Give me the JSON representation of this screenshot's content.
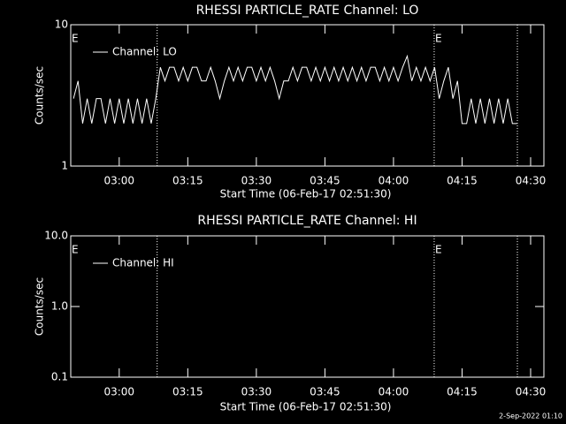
{
  "chart_data": [
    {
      "type": "line",
      "title": "RHESSI PARTICLE_RATE Channel: LO",
      "xlabel": "Start Time (06-Feb-17 02:51:30)",
      "ylabel": "Counts/sec",
      "log_y": true,
      "legend": "upper left",
      "line_color": "#ffffff",
      "xlim": [
        169.4,
        272.9
      ],
      "ylim": [
        1,
        10
      ],
      "yticks": [
        1,
        10
      ],
      "xticks": [
        {
          "value": 180,
          "label": "03:00"
        },
        {
          "value": 195,
          "label": "03:15"
        },
        {
          "value": 210,
          "label": "03:30"
        },
        {
          "value": 225,
          "label": "03:45"
        },
        {
          "value": 240,
          "label": "04:00"
        },
        {
          "value": 255,
          "label": "04:15"
        },
        {
          "value": 270,
          "label": "04:30"
        }
      ],
      "vlines": [
        188.3,
        248.9,
        267.1
      ],
      "annotations": [
        "E",
        "E"
      ],
      "x": [
        170,
        171,
        172,
        173,
        174,
        175,
        176,
        177,
        178,
        179,
        180,
        181,
        182,
        183,
        184,
        185,
        186,
        187,
        188,
        189,
        190,
        191,
        192,
        193,
        194,
        195,
        196,
        197,
        198,
        199,
        200,
        201,
        202,
        203,
        204,
        205,
        206,
        207,
        208,
        209,
        210,
        211,
        212,
        213,
        214,
        215,
        216,
        217,
        218,
        219,
        220,
        221,
        222,
        223,
        224,
        225,
        226,
        227,
        228,
        229,
        230,
        231,
        232,
        233,
        234,
        235,
        236,
        237,
        238,
        239,
        240,
        241,
        242,
        243,
        244,
        245,
        246,
        247,
        248,
        249,
        250,
        251,
        252,
        253,
        254,
        255,
        256,
        257,
        258,
        259,
        260,
        261,
        262,
        263,
        264,
        265,
        266,
        267
      ],
      "series": [
        {
          "name": "Channel: LO",
          "color": "#ffffff",
          "values": [
            3,
            4,
            2,
            3,
            2,
            3,
            3,
            2,
            3,
            2,
            3,
            2,
            3,
            2,
            3,
            2,
            3,
            2,
            3,
            5,
            4,
            5,
            5,
            4,
            5,
            4,
            5,
            5,
            4,
            4,
            5,
            4,
            3,
            4,
            5,
            4,
            5,
            4,
            5,
            5,
            4,
            5,
            4,
            5,
            4,
            3,
            4,
            4,
            5,
            4,
            5,
            5,
            4,
            5,
            4,
            5,
            4,
            5,
            4,
            5,
            4,
            5,
            4,
            5,
            4,
            5,
            5,
            4,
            5,
            4,
            5,
            4,
            5,
            6,
            4,
            5,
            4,
            5,
            4,
            5,
            3,
            4,
            5,
            3,
            4,
            2,
            2,
            3,
            2,
            3,
            2,
            3,
            2,
            3,
            2,
            3,
            2,
            2
          ]
        }
      ]
    },
    {
      "type": "line",
      "title": "RHESSI PARTICLE_RATE Channel: HI",
      "xlabel": "Start Time (06-Feb-17 02:51:30)",
      "ylabel": "Counts/sec",
      "log_y": true,
      "legend": "upper left",
      "line_color": "#ffffff",
      "xlim": [
        169.4,
        272.9
      ],
      "ylim": [
        0.1,
        10
      ],
      "yticks": [
        0.1,
        {
          "value": 1,
          "label": "1.0"
        },
        {
          "value": 10,
          "label": "10.0"
        }
      ],
      "xticks": [
        {
          "value": 180,
          "label": "03:00"
        },
        {
          "value": 195,
          "label": "03:15"
        },
        {
          "value": 210,
          "label": "03:30"
        },
        {
          "value": 225,
          "label": "03:45"
        },
        {
          "value": 240,
          "label": "04:00"
        },
        {
          "value": 255,
          "label": "04:15"
        },
        {
          "value": 270,
          "label": "04:30"
        }
      ],
      "vlines": [
        188.3,
        248.9,
        267.1
      ],
      "annotations": [
        "E",
        "E"
      ],
      "x": [],
      "series": [
        {
          "name": "Channel: HI",
          "color": "#ffffff",
          "values": []
        }
      ]
    }
  ],
  "footer": "2-Sep-2022 01:10"
}
